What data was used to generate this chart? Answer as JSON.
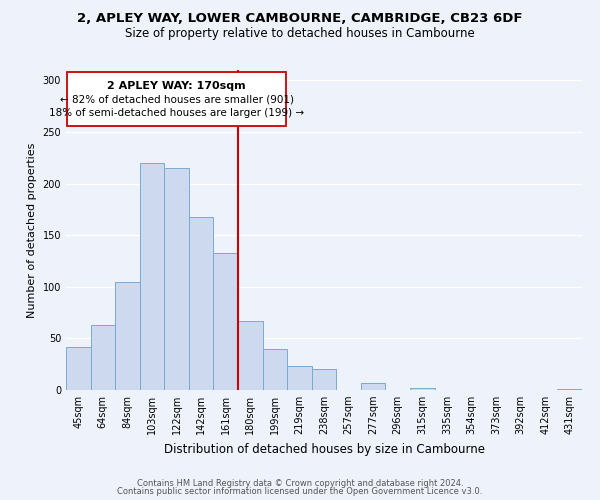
{
  "title_line1": "2, APLEY WAY, LOWER CAMBOURNE, CAMBRIDGE, CB23 6DF",
  "title_line2": "Size of property relative to detached houses in Cambourne",
  "xlabel": "Distribution of detached houses by size in Cambourne",
  "ylabel": "Number of detached properties",
  "bar_labels": [
    "45sqm",
    "64sqm",
    "84sqm",
    "103sqm",
    "122sqm",
    "142sqm",
    "161sqm",
    "180sqm",
    "199sqm",
    "219sqm",
    "238sqm",
    "257sqm",
    "277sqm",
    "296sqm",
    "315sqm",
    "335sqm",
    "354sqm",
    "373sqm",
    "392sqm",
    "412sqm",
    "431sqm"
  ],
  "bar_values": [
    42,
    63,
    105,
    220,
    215,
    168,
    133,
    67,
    40,
    23,
    20,
    0,
    7,
    0,
    2,
    0,
    0,
    0,
    0,
    0,
    1
  ],
  "bar_color": "#ccd9ee",
  "bar_edge_color": "#7aaad0",
  "reference_line_label": "2 APLEY WAY: 170sqm",
  "annotation_line1": "← 82% of detached houses are smaller (901)",
  "annotation_line2": "18% of semi-detached houses are larger (199) →",
  "ylim": [
    0,
    310
  ],
  "yticks": [
    0,
    50,
    100,
    150,
    200,
    250,
    300
  ],
  "vline_color": "#cc0000",
  "annotation_box_color": "#ffffff",
  "annotation_box_edge": "#cc0000",
  "footer_line1": "Contains HM Land Registry data © Crown copyright and database right 2024.",
  "footer_line2": "Contains public sector information licensed under the Open Government Licence v3.0.",
  "background_color": "#eef2fa",
  "grid_color": "#ffffff",
  "title1_fontsize": 9.5,
  "title2_fontsize": 8.5,
  "ylabel_fontsize": 8,
  "xlabel_fontsize": 8.5,
  "tick_fontsize": 7,
  "footer_fontsize": 6,
  "annot_title_fontsize": 8,
  "annot_text_fontsize": 7.5
}
